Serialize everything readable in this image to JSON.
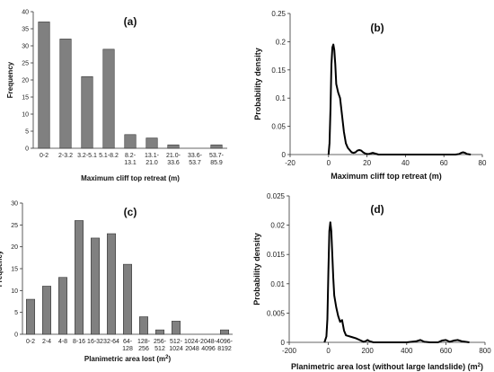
{
  "chart_data": [
    {
      "type": "bar",
      "panel_label": "(a)",
      "categories": [
        "0-2",
        "2-3.2",
        "3.2-5.1",
        "5.1-8.2",
        "8.2-13.1",
        "13.1-21.0",
        "21.0-33.6",
        "33.6-53.7",
        "53.7-85.9"
      ],
      "category_lines": [
        [
          "0-2"
        ],
        [
          "2-3.2"
        ],
        [
          "3.2-5.1"
        ],
        [
          "5.1-8.2"
        ],
        [
          "8.2-",
          "13.1"
        ],
        [
          "13.1-",
          "21.0"
        ],
        [
          "21.0-",
          "33.6"
        ],
        [
          "33.6-",
          "53.7"
        ],
        [
          "53.7-",
          "85.9"
        ]
      ],
      "values": [
        37,
        32,
        21,
        29,
        4,
        3,
        1,
        0,
        1
      ],
      "xlabel": "Maximum cliff top retreat  (m)",
      "ylabel": "Frequency",
      "ylim": [
        0,
        40
      ],
      "yticks": [
        0,
        5,
        10,
        15,
        20,
        25,
        30,
        35,
        40
      ]
    },
    {
      "type": "line",
      "panel_label": "(b)",
      "series": [
        {
          "x": [
            0,
            0.5,
            1,
            1.5,
            2,
            2.5,
            3,
            3.5,
            4,
            5,
            6,
            7,
            8,
            9,
            10,
            11,
            12,
            13,
            14,
            15,
            16,
            17,
            18,
            19,
            20,
            21,
            22,
            23,
            24,
            25,
            26,
            30,
            40,
            50,
            60,
            66,
            68,
            69,
            70,
            71,
            72,
            74
          ],
          "y": [
            0.0,
            0.02,
            0.08,
            0.16,
            0.19,
            0.195,
            0.185,
            0.16,
            0.125,
            0.11,
            0.1,
            0.07,
            0.04,
            0.02,
            0.012,
            0.008,
            0.004,
            0.003,
            0.004,
            0.007,
            0.008,
            0.007,
            0.004,
            0.002,
            0.001,
            0.001,
            0.002,
            0.003,
            0.002,
            0.001,
            0.0,
            0.0,
            0.0,
            0.0,
            0.0,
            0.0,
            0.001,
            0.003,
            0.004,
            0.003,
            0.001,
            0.0
          ]
        }
      ],
      "xlabel": "Maximum cliff top retreat (m)",
      "ylabel": "Probability density",
      "xlim": [
        -20,
        80
      ],
      "ylim": [
        0,
        0.25
      ],
      "xticks": [
        -20,
        0,
        20,
        40,
        60,
        80
      ],
      "yticks": [
        0,
        0.05,
        0.1,
        0.15,
        0.2,
        0.25
      ]
    },
    {
      "type": "bar",
      "panel_label": "(c)",
      "categories": [
        "0-2",
        "2-4",
        "4-8",
        "8-16",
        "16-32",
        "32-64",
        "64-128",
        "128-256",
        "256-512",
        "512-1024",
        "1024-2048",
        "2048-4096",
        "4096-8192"
      ],
      "category_lines": [
        [
          "0-2"
        ],
        [
          "2-4"
        ],
        [
          "4-8"
        ],
        [
          "8-16"
        ],
        [
          "16-32"
        ],
        [
          "32-64"
        ],
        [
          "64-",
          "128"
        ],
        [
          "128-",
          "256"
        ],
        [
          "256-",
          "512"
        ],
        [
          "512-",
          "1024"
        ],
        [
          "1024-",
          "2048"
        ],
        [
          "2048-",
          "4096"
        ],
        [
          "4096-",
          "8192"
        ]
      ],
      "values": [
        8,
        11,
        13,
        26,
        22,
        23,
        16,
        4,
        1,
        3,
        0,
        0,
        1
      ],
      "xlabel_text": "Planimetric area lost (m",
      "xlabel_sup": "2",
      "xlabel_end": ")",
      "ylabel": "Frequency",
      "ylim": [
        0,
        30
      ],
      "yticks": [
        0,
        5,
        10,
        15,
        20,
        25,
        30
      ]
    },
    {
      "type": "line",
      "panel_label": "(d)",
      "series": [
        {
          "x": [
            -20,
            -10,
            -5,
            0,
            5,
            10,
            15,
            20,
            25,
            30,
            40,
            50,
            60,
            70,
            80,
            90,
            100,
            120,
            140,
            160,
            180,
            190,
            200,
            210,
            220,
            230,
            260,
            400,
            450,
            470,
            490,
            520,
            560,
            580,
            600,
            620,
            640,
            660,
            680,
            700,
            720
          ],
          "y": [
            0.0,
            0.001,
            0.004,
            0.012,
            0.019,
            0.0205,
            0.019,
            0.015,
            0.011,
            0.008,
            0.006,
            0.0045,
            0.0035,
            0.0038,
            0.002,
            0.0012,
            0.0011,
            0.0009,
            0.0007,
            0.0004,
            0.0001,
            0.0002,
            0.0004,
            0.0002,
            0.0001,
            0.0,
            0.0,
            0.0,
            0.0002,
            0.0004,
            0.0001,
            0.0,
            0.0,
            0.0003,
            0.0004,
            0.0001,
            0.0003,
            0.0004,
            0.0002,
            0.0001,
            0.0
          ]
        }
      ],
      "xlabel_text": "Planimetric area lost (without large landslide) (m",
      "xlabel_sup": "2",
      "xlabel_end": ")",
      "ylabel": "Probability density",
      "xlim": [
        -200,
        800
      ],
      "ylim": [
        0,
        0.025
      ],
      "xticks": [
        -200,
        0,
        200,
        400,
        600,
        800
      ],
      "yticks": [
        0,
        0.005,
        0.01,
        0.015,
        0.02,
        0.025
      ]
    }
  ]
}
